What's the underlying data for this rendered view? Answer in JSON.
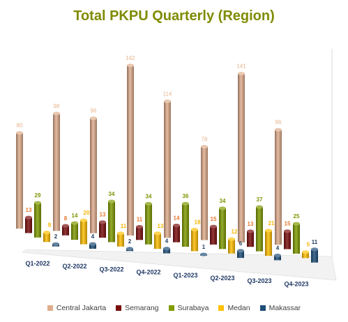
{
  "chart_data": {
    "type": "bar",
    "title": "Total PKPU Quarterly (Region)",
    "categories": [
      "Q1-2022",
      "Q2-2022",
      "Q3-2022",
      "Q4-2022",
      "Q1-2023",
      "Q2-2023",
      "Q3-2023",
      "Q4-2023"
    ],
    "series": [
      {
        "name": "Central Jakarta",
        "color": "#e0ad8c",
        "label_color": "#e8b48c",
        "values": [
          80,
          98,
          96,
          142,
          114,
          78,
          141,
          96
        ]
      },
      {
        "name": "Semarang",
        "color": "#7a0c0c",
        "label_color": "#e8762c",
        "values": [
          13,
          8,
          13,
          11,
          14,
          15,
          13,
          15
        ]
      },
      {
        "name": "Surabaya",
        "color": "#7f9b00",
        "label_color": "#7f9400",
        "values": [
          29,
          14,
          34,
          34,
          36,
          34,
          37,
          25
        ]
      },
      {
        "name": "Medan",
        "color": "#ffc000",
        "label_color": "#f7b500",
        "values": [
          8,
          20,
          11,
          13,
          18,
          12,
          21,
          5
        ]
      },
      {
        "name": "Makassar",
        "color": "#1f4e79",
        "label_color": "#1f3b5a",
        "values": [
          2,
          4,
          2,
          4,
          1,
          6,
          4,
          11
        ]
      }
    ],
    "ylim": [
      0,
      150
    ],
    "grid": false,
    "legend_position": "bottom"
  }
}
